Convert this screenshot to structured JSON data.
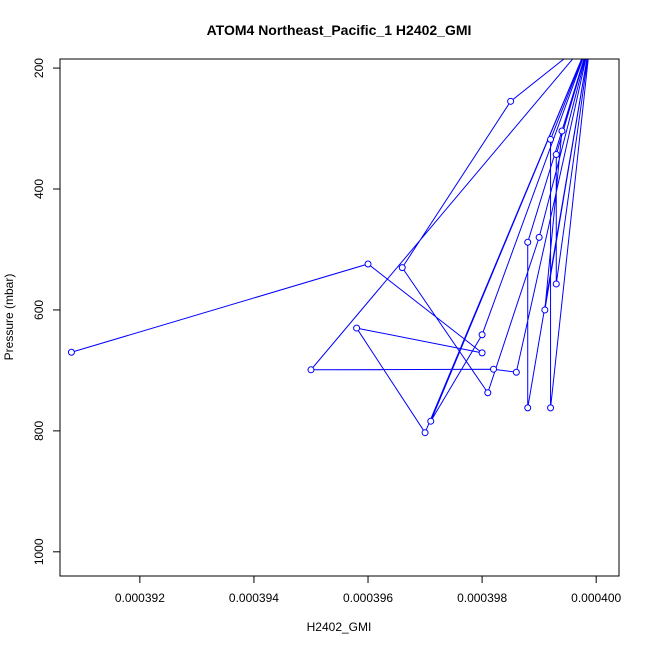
{
  "chart_data": {
    "type": "line",
    "title": "ATOM4 Northeast_Pacific_1 H2402_GMI",
    "xlabel": "H2402_GMI",
    "ylabel": "Pressure (mbar)",
    "xlim": [
      0.0003906,
      0.0004004
    ],
    "ylim": [
      1040,
      185
    ],
    "y_reversed": true,
    "grid": false,
    "legend": "none",
    "series_color": "#0000ff",
    "x_ticks": [
      {
        "value": 0.000392,
        "label": "0.000392"
      },
      {
        "value": 0.000394,
        "label": "0.000394"
      },
      {
        "value": 0.000396,
        "label": "0.000396"
      },
      {
        "value": 0.000398,
        "label": "0.000398"
      },
      {
        "value": 0.0004,
        "label": "0.000400"
      }
    ],
    "y_ticks": [
      {
        "value": 200,
        "label": "200"
      },
      {
        "value": 400,
        "label": "400"
      },
      {
        "value": 600,
        "label": "600"
      },
      {
        "value": 800,
        "label": "800"
      },
      {
        "value": 1000,
        "label": "1000"
      }
    ],
    "series": [
      {
        "points": [
          {
            "x": 0.0003999,
            "y": 150
          },
          {
            "x": 0.0003985,
            "y": 255
          },
          {
            "x": 0.0003966,
            "y": 530
          },
          {
            "x": 0.0003981,
            "y": 737
          },
          {
            "x": 0.000399,
            "y": 480
          },
          {
            "x": 0.0003999,
            "y": 150
          },
          {
            "x": 0.0003994,
            "y": 304
          },
          {
            "x": 0.0003991,
            "y": 600
          },
          {
            "x": 0.0003999,
            "y": 150
          },
          {
            "x": 0.0003992,
            "y": 318
          },
          {
            "x": 0.0003992,
            "y": 762
          },
          {
            "x": 0.0003999,
            "y": 150
          },
          {
            "x": 0.0003993,
            "y": 343
          },
          {
            "x": 0.0003993,
            "y": 557
          },
          {
            "x": 0.0003999,
            "y": 150
          },
          {
            "x": 0.0003988,
            "y": 488
          },
          {
            "x": 0.0003988,
            "y": 762
          },
          {
            "x": 0.0003999,
            "y": 150
          },
          {
            "x": 0.0003986,
            "y": 703
          },
          {
            "x": 0.0003982,
            "y": 698
          },
          {
            "x": 0.000395,
            "y": 699
          },
          {
            "x": 0.0003999,
            "y": 150
          },
          {
            "x": 0.000398,
            "y": 641
          },
          {
            "x": 0.0003971,
            "y": 784
          },
          {
            "x": 0.0003999,
            "y": 150
          },
          {
            "x": 0.000397,
            "y": 803
          },
          {
            "x": 0.0003958,
            "y": 630
          },
          {
            "x": 0.000398,
            "y": 671
          },
          {
            "x": 0.000396,
            "y": 524
          },
          {
            "x": 0.0003908,
            "y": 670
          }
        ]
      }
    ]
  }
}
